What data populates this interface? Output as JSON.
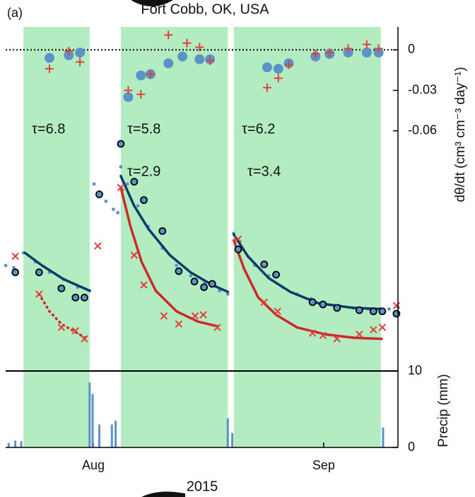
{
  "chart_data": [
    {
      "type": "scatter",
      "title": "Fort Cobb, OK, USA",
      "panel_label": "(a)",
      "xlim": [
        201.2,
        254.0
      ],
      "ylim": [
        0.1,
        0.4
      ],
      "y2lim": [
        -0.238,
        0.017
      ],
      "y2ticks": [
        0,
        -0.03,
        -0.06
      ],
      "y2label": "dθ/dt (cm³ cm⁻³ day⁻¹)",
      "reference_line_y2": 0,
      "shaded_spans": [
        [
          203.6,
          212.5
        ],
        [
          216.7,
          231.1
        ],
        [
          231.9,
          251.7
        ]
      ],
      "shade_color": "#b4ecc1",
      "series": [
        {
          "marker": "dot",
          "color": "#5b93c8",
          "x": [
            201.2,
            202.3,
            203.6,
            205.2,
            207.1,
            209.0,
            210.9,
            212.5,
            213.1,
            213.8,
            214.7,
            215.7,
            216.3,
            216.7,
            217.6,
            219.0,
            220.4,
            222.3,
            224.2,
            226.1,
            228.0,
            230.0,
            231.1,
            231.9,
            232.8,
            234.7,
            236.6,
            238.5,
            240.4,
            242.3,
            244.2,
            246.1,
            248.0,
            250.0,
            251.7,
            252.8,
            254.0
          ],
          "values": [
            0.192,
            0.19,
            0.203,
            0.195,
            0.186,
            0.18,
            0.173,
            0.17,
            0.263,
            0.256,
            0.248,
            0.241,
            0.238,
            0.278,
            0.263,
            0.244,
            0.226,
            0.207,
            0.192,
            0.183,
            0.177,
            0.17,
            0.167,
            0.22,
            0.207,
            0.192,
            0.183,
            0.173,
            0.167,
            0.163,
            0.159,
            0.157,
            0.155,
            0.154,
            0.154,
            0.154,
            0.156
          ]
        },
        {
          "marker": "line",
          "color": "#0b3d66",
          "x": [
            203.8,
            206.1,
            209.0,
            212.5,
            null,
            216.7,
            218.5,
            220.4,
            223.3,
            226.1,
            229.0,
            231.1,
            null,
            231.9,
            233.8,
            236.6,
            239.5,
            243.3,
            248.0,
            251.8
          ],
          "values": [
            0.203,
            0.192,
            0.18,
            0.17,
            null,
            0.27,
            0.244,
            0.224,
            0.201,
            0.186,
            0.175,
            0.169,
            null,
            0.219,
            0.2,
            0.181,
            0.169,
            0.159,
            0.155,
            0.154
          ]
        },
        {
          "marker": "line",
          "line_style": "dotted",
          "color": "#cc2a2a",
          "x": [
            205.7,
            207.1,
            208.7,
            211.9
          ],
          "values": [
            0.167,
            0.152,
            0.141,
            0.129
          ]
        },
        {
          "marker": "line",
          "color": "#cc2a2a",
          "x": [
            216.7,
            218.0,
            219.5,
            221.4,
            224.2,
            227.1,
            229.7,
            null,
            231.9,
            233.3,
            235.2,
            237.6,
            240.4,
            244.2,
            248.0,
            251.8
          ],
          "values": [
            0.26,
            0.226,
            0.195,
            0.17,
            0.152,
            0.143,
            0.139,
            null,
            0.214,
            0.189,
            0.164,
            0.149,
            0.138,
            0.132,
            0.129,
            0.128
          ]
        },
        {
          "marker": "circle",
          "color": "#5b93c8",
          "x": [
            202.5,
            205.7,
            208.7,
            210.6,
            211.8,
            213.8,
            216.7,
            218.5,
            219.8,
            222.3,
            224.5,
            226.6,
            227.9,
            229.0,
            232.5,
            236.0,
            237.6,
            242.5,
            243.9,
            245.8,
            248.8,
            250.7,
            251.9,
            253.8
          ],
          "values": [
            0.186,
            0.186,
            0.172,
            0.164,
            0.164,
            0.254,
            0.298,
            0.265,
            0.249,
            0.222,
            0.187,
            0.178,
            0.173,
            0.176,
            0.206,
            0.193,
            0.184,
            0.16,
            0.158,
            0.155,
            0.153,
            0.152,
            0.152,
            0.15
          ]
        },
        {
          "marker": "x",
          "color": "#e0403a",
          "x": [
            202.5,
            205.7,
            208.7,
            210.6,
            211.8,
            213.6,
            216.7,
            218.5,
            219.8,
            222.5,
            224.5,
            226.7,
            227.8,
            229.7,
            232.5,
            236.0,
            237.8,
            242.5,
            243.9,
            245.8,
            248.8,
            250.7,
            251.9,
            253.8
          ],
          "values": [
            0.2,
            0.167,
            0.138,
            0.135,
            0.128,
            0.209,
            0.26,
            0.201,
            0.175,
            0.148,
            0.141,
            0.148,
            0.149,
            0.138,
            0.215,
            0.16,
            0.152,
            0.133,
            0.131,
            0.128,
            0.132,
            0.136,
            0.138,
            0.157
          ]
        },
        {
          "marker": "big-circle",
          "axis": "y2",
          "color": "#5b93c8",
          "x": [
            207.1,
            209.7,
            211.2,
            217.7,
            219.4,
            220.7,
            223.1,
            225.0,
            227.3,
            228.7,
            236.4,
            237.9,
            239.3,
            242.9,
            244.8,
            247.3,
            249.8,
            251.4
          ],
          "values": [
            -0.006,
            -0.004,
            -0.002,
            -0.035,
            -0.019,
            -0.018,
            -0.01,
            -0.005,
            -0.007,
            -0.007,
            -0.013,
            -0.014,
            -0.01,
            -0.005,
            -0.003,
            -0.002,
            -0.002,
            -0.002
          ]
        },
        {
          "marker": "plus",
          "axis": "y2",
          "color": "#e0403a",
          "x": [
            207.1,
            209.7,
            211.2,
            217.7,
            219.4,
            220.7,
            223.1,
            225.6,
            227.3,
            228.7,
            236.4,
            237.9,
            239.3,
            242.9,
            244.8,
            247.3,
            249.8,
            251.4
          ],
          "values": [
            -0.014,
            -0.001,
            -0.009,
            -0.03,
            -0.033,
            -0.018,
            0.011,
            0.005,
            0.002,
            -0.008,
            -0.028,
            -0.021,
            -0.011,
            -0.003,
            -0.002,
            0.001,
            0.004,
            0.001
          ]
        }
      ],
      "annotations": [
        {
          "text": "τ=6.8",
          "color": "#5b93c8"
        },
        {
          "text": "τ=5.8",
          "color": "#5b93c8"
        },
        {
          "text": "τ=2.9",
          "color": "#d83030"
        },
        {
          "text": "τ=6.2",
          "color": "#5b93c8"
        },
        {
          "text": "τ=3.4",
          "color": "#d83030"
        }
      ]
    },
    {
      "type": "bar",
      "ylabel": "Precip (mm)",
      "xlabel": "2015",
      "xlim": [
        201.2,
        254.0
      ],
      "ylim": [
        0,
        10
      ],
      "yticks": [
        0,
        10
      ],
      "xticks": [
        {
          "value": 213,
          "label": "Aug"
        },
        {
          "value": 244,
          "label": "Sep"
        }
      ],
      "shaded_spans": [
        [
          203.6,
          212.5
        ],
        [
          216.7,
          231.1
        ],
        [
          231.9,
          251.7
        ]
      ],
      "shade_color": "#b4ecc1",
      "color": "#5b93c8",
      "x": [
        201.6,
        202.5,
        203.3,
        212.5,
        212.9,
        213.8,
        215.5,
        216.0,
        231.1,
        231.7,
        252.0
      ],
      "values": [
        0.6,
        0.9,
        0.8,
        8.5,
        7.0,
        3.0,
        3.0,
        3.5,
        3.8,
        1.9,
        2.6
      ]
    }
  ]
}
